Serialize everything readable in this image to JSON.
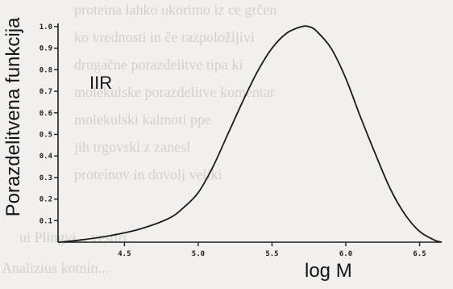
{
  "background_text": [
    "proteina lahko ukorimo iz ce grčen",
    "ko vrednosti in če razpoložljivi",
    "drugačne porazdelitve tipa ki",
    "molekulske porazdelitve komentar",
    "molekulski kalmoti ppe",
    "jih trgovski z zanesl",
    "proteinov in dovolj veliki",
    "",
    "ui Plingvi... vestiri",
    "Analizius kotnin..."
  ],
  "chart_data": {
    "type": "line",
    "title": "",
    "xlabel": "log M",
    "ylabel": "Porazdelitvena funkcija",
    "annotation": "IIR",
    "xlim": [
      4.05,
      6.65
    ],
    "ylim": [
      0,
      1.0
    ],
    "x_ticks": [
      "4.5",
      "5.0",
      "5.5",
      "6.0",
      "6.5"
    ],
    "y_ticks": [
      "0.1",
      "0.2",
      "0.3",
      "0.4",
      "0.5",
      "0.6",
      "0.7",
      "0.8",
      "0.9",
      "1.0"
    ],
    "grid": false,
    "line_color": "#1a1a1a",
    "series": [
      {
        "name": "",
        "x": [
          4.05,
          4.2,
          4.4,
          4.6,
          4.8,
          4.9,
          5.0,
          5.1,
          5.2,
          5.3,
          5.4,
          5.5,
          5.6,
          5.7,
          5.75,
          5.8,
          5.9,
          6.0,
          6.1,
          6.2,
          6.3,
          6.4,
          6.5,
          6.6,
          6.65
        ],
        "y": [
          0.0,
          0.01,
          0.03,
          0.06,
          0.11,
          0.16,
          0.23,
          0.35,
          0.5,
          0.65,
          0.79,
          0.9,
          0.97,
          1.0,
          1.0,
          0.98,
          0.9,
          0.76,
          0.58,
          0.41,
          0.25,
          0.13,
          0.05,
          0.01,
          0.0
        ]
      }
    ]
  }
}
